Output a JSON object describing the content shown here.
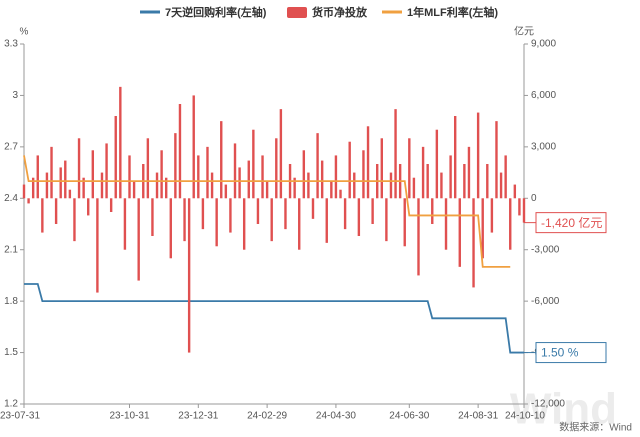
{
  "chart_data": {
    "type": "bar-line",
    "legend_position": "top",
    "y_unit": "%",
    "y2_unit": "亿元",
    "source": "数据来源：Wind",
    "watermark": "Wind",
    "annotations": [
      {
        "text": "-1,420 亿元",
        "series": 1,
        "color": "#e05050"
      },
      {
        "text": "1.50 %",
        "series": 0,
        "color": "#3a7aa8"
      }
    ],
    "categories": [
      "23-07-31",
      null,
      null,
      null,
      null,
      null,
      null,
      null,
      null,
      null,
      null,
      null,
      null,
      null,
      null,
      null,
      null,
      null,
      null,
      null,
      null,
      null,
      null,
      "23-10-31",
      null,
      null,
      null,
      null,
      null,
      null,
      null,
      null,
      null,
      null,
      null,
      null,
      null,
      null,
      "23-12-31",
      null,
      null,
      null,
      null,
      null,
      null,
      null,
      null,
      null,
      null,
      null,
      null,
      null,
      null,
      "24-02-29",
      null,
      null,
      null,
      null,
      null,
      null,
      null,
      null,
      null,
      null,
      null,
      null,
      null,
      null,
      "24-04-30",
      null,
      null,
      null,
      null,
      null,
      null,
      null,
      null,
      null,
      null,
      null,
      null,
      null,
      null,
      null,
      "24-06-30",
      null,
      null,
      null,
      null,
      null,
      null,
      null,
      null,
      null,
      null,
      null,
      null,
      null,
      null,
      "24-08-31",
      null,
      null,
      null,
      null,
      null,
      null,
      null,
      null,
      null,
      "24-10-10"
    ],
    "ylim": [
      1.2,
      3.3
    ],
    "yticks": [
      1.2,
      1.5,
      1.8,
      2.1,
      2.4,
      2.7,
      3,
      3.3
    ],
    "y2lim": [
      -12000,
      9000
    ],
    "y2ticks": [
      {
        "value": -12000,
        "label": "-12,000"
      },
      {
        "value": -9000,
        "label": "-9,000"
      },
      {
        "value": -6000,
        "label": "-6,000"
      },
      {
        "value": -3000,
        "label": "-3,000"
      },
      0,
      {
        "value": 3000,
        "label": "3,000"
      },
      {
        "value": 6000,
        "label": "6,000"
      },
      {
        "value": 9000,
        "label": "9,000"
      }
    ],
    "series": [
      {
        "name": "7天逆回购利率(左轴)",
        "type": "line",
        "axis": "y",
        "color": "#3a7aa8",
        "values": [
          1.9,
          1.9,
          1.9,
          1.9,
          1.8,
          1.8,
          1.8,
          1.8,
          1.8,
          1.8,
          1.8,
          1.8,
          1.8,
          1.8,
          1.8,
          1.8,
          1.8,
          1.8,
          1.8,
          1.8,
          1.8,
          1.8,
          1.8,
          1.8,
          1.8,
          1.8,
          1.8,
          1.8,
          1.8,
          1.8,
          1.8,
          1.8,
          1.8,
          1.8,
          1.8,
          1.8,
          1.8,
          1.8,
          1.8,
          1.8,
          1.8,
          1.8,
          1.8,
          1.8,
          1.8,
          1.8,
          1.8,
          1.8,
          1.8,
          1.8,
          1.8,
          1.8,
          1.8,
          1.8,
          1.8,
          1.8,
          1.8,
          1.8,
          1.8,
          1.8,
          1.8,
          1.8,
          1.8,
          1.8,
          1.8,
          1.8,
          1.8,
          1.8,
          1.8,
          1.8,
          1.8,
          1.8,
          1.8,
          1.8,
          1.8,
          1.8,
          1.8,
          1.8,
          1.8,
          1.8,
          1.8,
          1.8,
          1.8,
          1.8,
          1.8,
          1.8,
          1.8,
          1.8,
          1.8,
          1.7,
          1.7,
          1.7,
          1.7,
          1.7,
          1.7,
          1.7,
          1.7,
          1.7,
          1.7,
          1.7,
          1.7,
          1.7,
          1.7,
          1.7,
          1.7,
          1.7,
          1.5,
          1.5,
          1.5,
          1.5
        ]
      },
      {
        "name": "货币净投放",
        "type": "bar",
        "axis": "y2",
        "color": "#e05050",
        "values": [
          800,
          -300,
          1200,
          2500,
          -2000,
          1500,
          3000,
          -1500,
          1800,
          2200,
          500,
          -2500,
          3500,
          1200,
          -1000,
          2800,
          -5500,
          1500,
          3200,
          -800,
          4800,
          6500,
          -3000,
          2500,
          1000,
          -4800,
          2000,
          3500,
          -2200,
          1500,
          2800,
          1200,
          -3500,
          3800,
          5500,
          -2500,
          -9000,
          6000,
          2500,
          -1800,
          3000,
          1500,
          -2800,
          4500,
          800,
          -2000,
          3200,
          1800,
          -3000,
          2200,
          4000,
          -1500,
          2500,
          1000,
          -2500,
          3500,
          5200,
          -1800,
          2000,
          1200,
          -3000,
          2800,
          1500,
          -1200,
          3800,
          2200,
          -2600,
          1000,
          2500,
          500,
          -1800,
          3300,
          1500,
          -2200,
          2800,
          4200,
          -1500,
          2000,
          3500,
          -2500,
          1500,
          5200,
          2000,
          -2800,
          3500,
          1200,
          -4500,
          3000,
          2000,
          -1500,
          4000,
          1500,
          -3000,
          2500,
          4800,
          -4000,
          2000,
          3000,
          -5200,
          5000,
          -3500,
          2000,
          -2000,
          4500,
          1500,
          2500,
          -3000,
          800,
          -1000,
          -1420
        ]
      },
      {
        "name": "1年MLF利率(左轴)",
        "type": "line",
        "axis": "y",
        "color": "#f0a040",
        "values": [
          2.65,
          2.5,
          2.5,
          2.5,
          2.5,
          2.5,
          2.5,
          2.5,
          2.5,
          2.5,
          2.5,
          2.5,
          2.5,
          2.5,
          2.5,
          2.5,
          2.5,
          2.5,
          2.5,
          2.5,
          2.5,
          2.5,
          2.5,
          2.5,
          2.5,
          2.5,
          2.5,
          2.5,
          2.5,
          2.5,
          2.5,
          2.5,
          2.5,
          2.5,
          2.5,
          2.5,
          2.5,
          2.5,
          2.5,
          2.5,
          2.5,
          2.5,
          2.5,
          2.5,
          2.5,
          2.5,
          2.5,
          2.5,
          2.5,
          2.5,
          2.5,
          2.5,
          2.5,
          2.5,
          2.5,
          2.5,
          2.5,
          2.5,
          2.5,
          2.5,
          2.5,
          2.5,
          2.5,
          2.5,
          2.5,
          2.5,
          2.5,
          2.5,
          2.5,
          2.5,
          2.5,
          2.5,
          2.5,
          2.5,
          2.5,
          2.5,
          2.5,
          2.5,
          2.5,
          2.5,
          2.5,
          2.5,
          2.5,
          2.5,
          2.3,
          2.3,
          2.3,
          2.3,
          2.3,
          2.3,
          2.3,
          2.3,
          2.3,
          2.3,
          2.3,
          2.3,
          2.3,
          2.3,
          2.3,
          2.3,
          2.0,
          2.0,
          2.0,
          2.0,
          2.0,
          2.0,
          2.0,
          null,
          null,
          null
        ]
      }
    ]
  }
}
